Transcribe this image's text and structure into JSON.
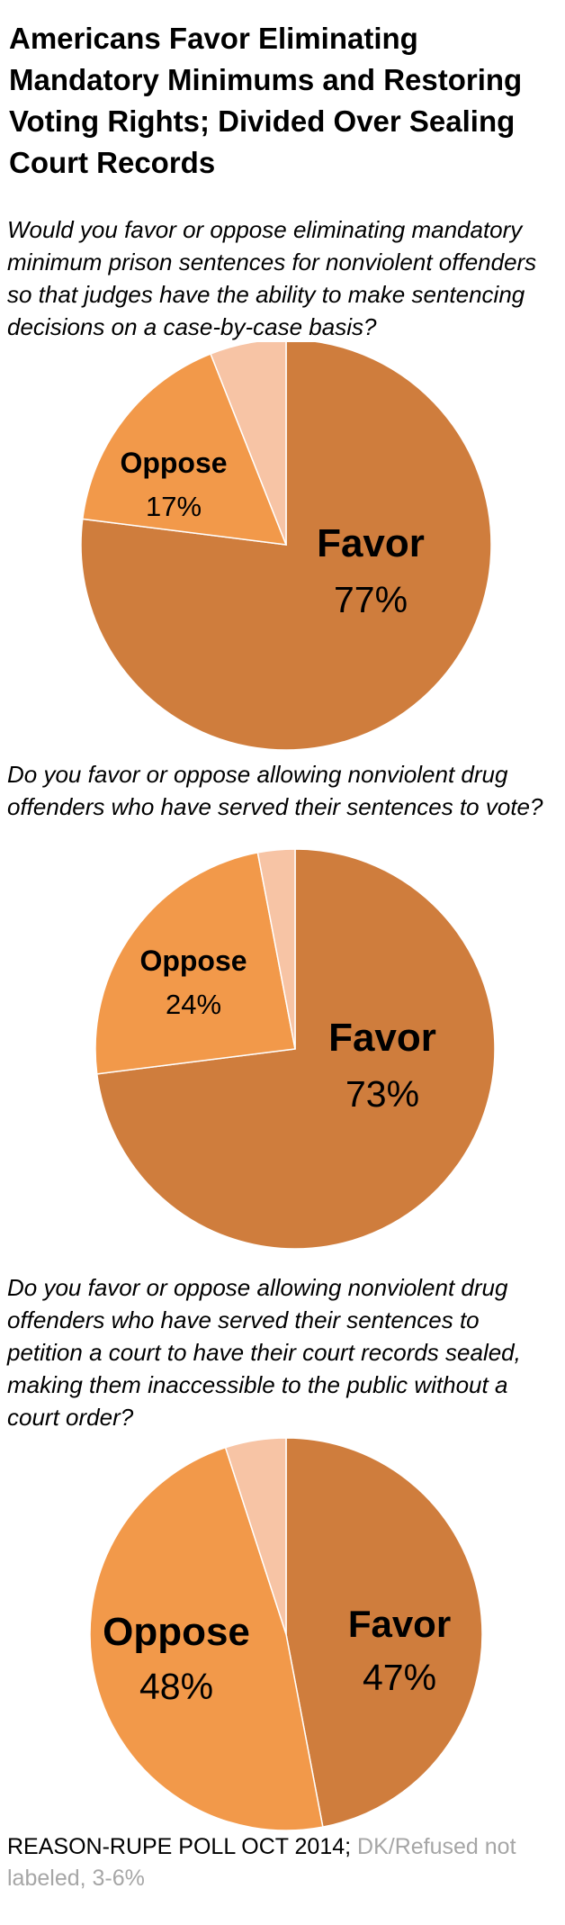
{
  "title": "Americans Favor Eliminating Mandatory Minimums and Restoring Voting Rights; Divided Over Sealing Court Records",
  "colors": {
    "favor": "#CF7D3D",
    "oppose": "#F2994A",
    "dk": "#F7C4A5"
  },
  "chart_data": [
    {
      "type": "pie",
      "question": "Would you favor or oppose eliminating mandatory minimum prison sentences for nonviolent offenders so that judges have the ability to make sentencing decisions on a case-by-case basis?",
      "categories": [
        "Favor",
        "Oppose",
        "DK/Refused"
      ],
      "values": [
        77,
        17,
        6
      ],
      "labels": [
        {
          "name": "Favor",
          "value": "77%"
        },
        {
          "name": "Oppose",
          "value": "17%"
        }
      ]
    },
    {
      "type": "pie",
      "question": "Do you favor or oppose allowing nonviolent drug offenders who have served their sentences to vote?",
      "categories": [
        "Favor",
        "Oppose",
        "DK/Refused"
      ],
      "values": [
        73,
        24,
        3
      ],
      "labels": [
        {
          "name": "Favor",
          "value": "73%"
        },
        {
          "name": "Oppose",
          "value": "24%"
        }
      ]
    },
    {
      "type": "pie",
      "question": "Do you favor or oppose allowing nonviolent drug offenders who have served their sentences to petition a court to have their court records sealed, making them inaccessible to the public without a court order?",
      "categories": [
        "Favor",
        "Oppose",
        "DK/Refused"
      ],
      "values": [
        47,
        48,
        5
      ],
      "labels": [
        {
          "name": "Favor",
          "value": "47%"
        },
        {
          "name": "Oppose",
          "value": "48%"
        }
      ]
    }
  ],
  "footer": {
    "source": "REASON-RUPE POLL OCT 2014;",
    "note": " DK/Refused not labeled, 3-6%"
  }
}
